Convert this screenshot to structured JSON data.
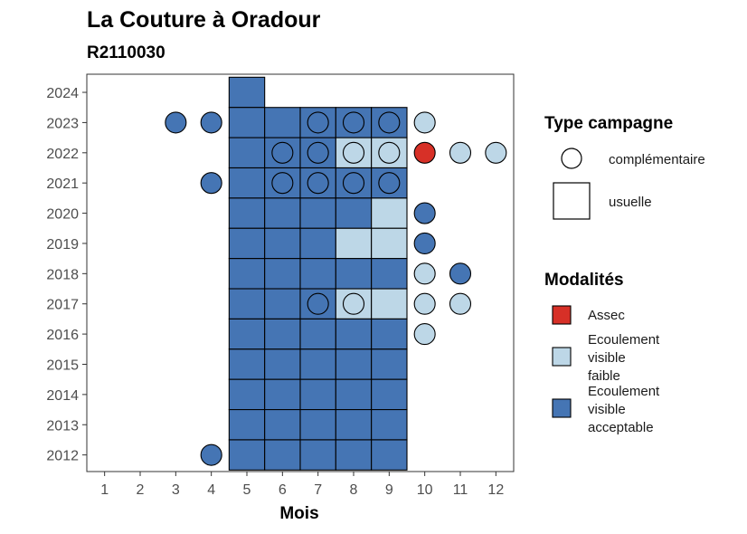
{
  "chart_data": {
    "type": "tile",
    "title": "La Couture à Oradour",
    "subtitle": "R2110030",
    "xlabel": "Mois",
    "ylabel": "",
    "x_ticks": [
      1,
      2,
      3,
      4,
      5,
      6,
      7,
      8,
      9,
      10,
      11,
      12
    ],
    "y_ticks": [
      2012,
      2013,
      2014,
      2015,
      2016,
      2017,
      2018,
      2019,
      2020,
      2021,
      2022,
      2023,
      2024
    ],
    "xlim": [
      0.5,
      12.5
    ],
    "ylim": [
      2011.45,
      2024.6
    ],
    "colors": {
      "assec": "#d73027",
      "faible": "#bdd7e7",
      "acceptable": "#4575b4"
    },
    "legend": {
      "shape_title": "Type campagne",
      "shape_items": [
        {
          "label": "complémentaire",
          "shape": "circle"
        },
        {
          "label": "usuelle",
          "shape": "square"
        }
      ],
      "fill_title": "Modalités",
      "fill_items": [
        {
          "key": "assec",
          "lines": [
            "Assec"
          ]
        },
        {
          "key": "faible",
          "lines": [
            "Ecoulement",
            "visible",
            "faible"
          ]
        },
        {
          "key": "acceptable",
          "lines": [
            "Ecoulement",
            "visible",
            "acceptable"
          ]
        }
      ]
    },
    "usuelle": [
      {
        "year": 2024,
        "month": 5,
        "m": "acceptable"
      },
      {
        "year": 2023,
        "month": 5,
        "m": "acceptable"
      },
      {
        "year": 2023,
        "month": 6,
        "m": "acceptable"
      },
      {
        "year": 2023,
        "month": 7,
        "m": "acceptable"
      },
      {
        "year": 2023,
        "month": 8,
        "m": "acceptable"
      },
      {
        "year": 2023,
        "month": 9,
        "m": "acceptable"
      },
      {
        "year": 2022,
        "month": 5,
        "m": "acceptable"
      },
      {
        "year": 2022,
        "month": 6,
        "m": "acceptable"
      },
      {
        "year": 2022,
        "month": 7,
        "m": "acceptable"
      },
      {
        "year": 2022,
        "month": 8,
        "m": "faible"
      },
      {
        "year": 2022,
        "month": 9,
        "m": "faible"
      },
      {
        "year": 2021,
        "month": 5,
        "m": "acceptable"
      },
      {
        "year": 2021,
        "month": 6,
        "m": "acceptable"
      },
      {
        "year": 2021,
        "month": 7,
        "m": "acceptable"
      },
      {
        "year": 2021,
        "month": 8,
        "m": "acceptable"
      },
      {
        "year": 2021,
        "month": 9,
        "m": "acceptable"
      },
      {
        "year": 2020,
        "month": 5,
        "m": "acceptable"
      },
      {
        "year": 2020,
        "month": 6,
        "m": "acceptable"
      },
      {
        "year": 2020,
        "month": 7,
        "m": "acceptable"
      },
      {
        "year": 2020,
        "month": 8,
        "m": "acceptable"
      },
      {
        "year": 2020,
        "month": 9,
        "m": "faible"
      },
      {
        "year": 2019,
        "month": 5,
        "m": "acceptable"
      },
      {
        "year": 2019,
        "month": 6,
        "m": "acceptable"
      },
      {
        "year": 2019,
        "month": 7,
        "m": "acceptable"
      },
      {
        "year": 2019,
        "month": 8,
        "m": "faible"
      },
      {
        "year": 2019,
        "month": 9,
        "m": "faible"
      },
      {
        "year": 2018,
        "month": 5,
        "m": "acceptable"
      },
      {
        "year": 2018,
        "month": 6,
        "m": "acceptable"
      },
      {
        "year": 2018,
        "month": 7,
        "m": "acceptable"
      },
      {
        "year": 2018,
        "month": 8,
        "m": "acceptable"
      },
      {
        "year": 2018,
        "month": 9,
        "m": "acceptable"
      },
      {
        "year": 2017,
        "month": 5,
        "m": "acceptable"
      },
      {
        "year": 2017,
        "month": 6,
        "m": "acceptable"
      },
      {
        "year": 2017,
        "month": 7,
        "m": "acceptable"
      },
      {
        "year": 2017,
        "month": 8,
        "m": "faible"
      },
      {
        "year": 2017,
        "month": 9,
        "m": "faible"
      },
      {
        "year": 2016,
        "month": 5,
        "m": "acceptable"
      },
      {
        "year": 2016,
        "month": 6,
        "m": "acceptable"
      },
      {
        "year": 2016,
        "month": 7,
        "m": "acceptable"
      },
      {
        "year": 2016,
        "month": 8,
        "m": "acceptable"
      },
      {
        "year": 2016,
        "month": 9,
        "m": "acceptable"
      },
      {
        "year": 2015,
        "month": 5,
        "m": "acceptable"
      },
      {
        "year": 2015,
        "month": 6,
        "m": "acceptable"
      },
      {
        "year": 2015,
        "month": 7,
        "m": "acceptable"
      },
      {
        "year": 2015,
        "month": 8,
        "m": "acceptable"
      },
      {
        "year": 2015,
        "month": 9,
        "m": "acceptable"
      },
      {
        "year": 2014,
        "month": 5,
        "m": "acceptable"
      },
      {
        "year": 2014,
        "month": 6,
        "m": "acceptable"
      },
      {
        "year": 2014,
        "month": 7,
        "m": "acceptable"
      },
      {
        "year": 2014,
        "month": 8,
        "m": "acceptable"
      },
      {
        "year": 2014,
        "month": 9,
        "m": "acceptable"
      },
      {
        "year": 2013,
        "month": 5,
        "m": "acceptable"
      },
      {
        "year": 2013,
        "month": 6,
        "m": "acceptable"
      },
      {
        "year": 2013,
        "month": 7,
        "m": "acceptable"
      },
      {
        "year": 2013,
        "month": 8,
        "m": "acceptable"
      },
      {
        "year": 2013,
        "month": 9,
        "m": "acceptable"
      },
      {
        "year": 2012,
        "month": 5,
        "m": "acceptable"
      },
      {
        "year": 2012,
        "month": 6,
        "m": "acceptable"
      },
      {
        "year": 2012,
        "month": 7,
        "m": "acceptable"
      },
      {
        "year": 2012,
        "month": 8,
        "m": "acceptable"
      },
      {
        "year": 2012,
        "month": 9,
        "m": "acceptable"
      }
    ],
    "complementaire": [
      {
        "year": 2023,
        "month": 3,
        "m": "acceptable"
      },
      {
        "year": 2023,
        "month": 4,
        "m": "acceptable"
      },
      {
        "year": 2023,
        "month": 7,
        "m": "acceptable"
      },
      {
        "year": 2023,
        "month": 8,
        "m": "acceptable"
      },
      {
        "year": 2023,
        "month": 9,
        "m": "acceptable"
      },
      {
        "year": 2023,
        "month": 10,
        "m": "faible"
      },
      {
        "year": 2022,
        "month": 6,
        "m": "acceptable"
      },
      {
        "year": 2022,
        "month": 7,
        "m": "acceptable"
      },
      {
        "year": 2022,
        "month": 8,
        "m": "faible"
      },
      {
        "year": 2022,
        "month": 9,
        "m": "faible"
      },
      {
        "year": 2022,
        "month": 10,
        "m": "assec"
      },
      {
        "year": 2022,
        "month": 11,
        "m": "faible"
      },
      {
        "year": 2022,
        "month": 12,
        "m": "faible"
      },
      {
        "year": 2021,
        "month": 4,
        "m": "acceptable"
      },
      {
        "year": 2021,
        "month": 6,
        "m": "acceptable"
      },
      {
        "year": 2021,
        "month": 7,
        "m": "acceptable"
      },
      {
        "year": 2021,
        "month": 8,
        "m": "acceptable"
      },
      {
        "year": 2021,
        "month": 9,
        "m": "acceptable"
      },
      {
        "year": 2020,
        "month": 10,
        "m": "acceptable"
      },
      {
        "year": 2019,
        "month": 10,
        "m": "acceptable"
      },
      {
        "year": 2018,
        "month": 10,
        "m": "faible"
      },
      {
        "year": 2018,
        "month": 11,
        "m": "acceptable"
      },
      {
        "year": 2017,
        "month": 7,
        "m": "acceptable"
      },
      {
        "year": 2017,
        "month": 8,
        "m": "faible"
      },
      {
        "year": 2017,
        "month": 10,
        "m": "faible"
      },
      {
        "year": 2017,
        "month": 11,
        "m": "faible"
      },
      {
        "year": 2016,
        "month": 10,
        "m": "faible"
      },
      {
        "year": 2012,
        "month": 4,
        "m": "acceptable"
      }
    ]
  }
}
